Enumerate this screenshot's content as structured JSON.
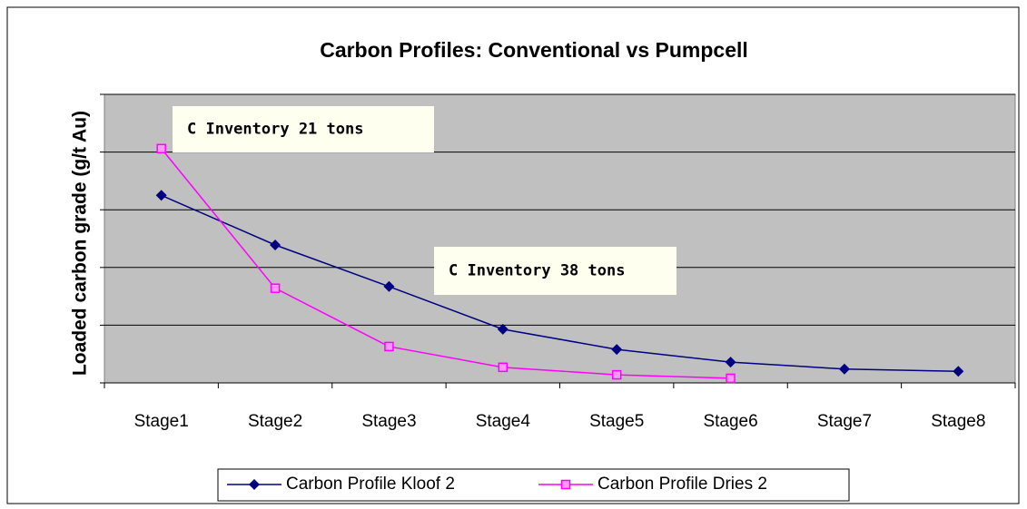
{
  "chart_data": {
    "type": "line",
    "title": "Carbon Profiles: Conventional vs Pumpcell",
    "y_label": "Loaded carbon grade (g/t Au)",
    "categories": [
      "Stage1",
      "Stage2",
      "Stage3",
      "Stage4",
      "Stage5",
      "Stage6",
      "Stage7",
      "Stage8"
    ],
    "series": [
      {
        "name": "Carbon Profile Kloof 2",
        "color": "#000080",
        "marker": "diamond",
        "values": [
          3.25,
          2.39,
          1.67,
          0.93,
          0.58,
          0.36,
          0.24,
          0.2
        ]
      },
      {
        "name": "Carbon Profile Dries 2",
        "color": "#ff00ff",
        "marker": "square",
        "values": [
          4.06,
          1.64,
          0.63,
          0.27,
          0.14,
          0.08,
          null,
          null
        ]
      }
    ],
    "annotations": [
      "C Inventory 21 tons",
      "C Inventory 38 tons"
    ],
    "ylim": [
      0,
      5
    ],
    "yticks": [
      0,
      1,
      2,
      3,
      4,
      5
    ],
    "grid": true,
    "legend": "bottom"
  }
}
